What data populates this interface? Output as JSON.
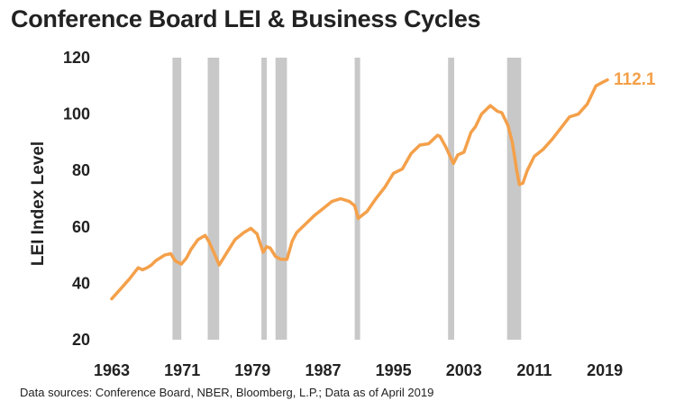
{
  "chart_data": {
    "type": "line",
    "title": "Conference Board LEI & Business Cycles",
    "ylabel": "LEI Index Level",
    "xlabel": "",
    "xlim": [
      1963,
      2019.4
    ],
    "ylim": [
      20,
      120
    ],
    "x_ticks": [
      1963,
      1971,
      1979,
      1987,
      1995,
      2003,
      2011,
      2019
    ],
    "y_ticks": [
      20,
      40,
      60,
      80,
      100,
      120
    ],
    "grid": false,
    "legend": "none",
    "line_color": "#F4A04A",
    "recession_color": "#C8C8C8",
    "end_label": "112.1",
    "recessions": [
      [
        1969.9,
        1970.9
      ],
      [
        1973.9,
        1975.2
      ],
      [
        1980.0,
        1980.6
      ],
      [
        1981.6,
        1982.9
      ],
      [
        1990.6,
        1991.2
      ],
      [
        2001.2,
        2001.9
      ],
      [
        2007.9,
        2009.5
      ]
    ],
    "series": [
      {
        "x": [
          1963.0,
          1964.0,
          1965.0,
          1966.0,
          1966.5,
          1967.0,
          1967.5,
          1968.0,
          1969.0,
          1969.7,
          1970.2,
          1970.9,
          1971.5,
          1972.0,
          1972.8,
          1973.6,
          1974.0,
          1974.8,
          1975.2,
          1975.8,
          1976.5,
          1977.0,
          1978.0,
          1978.8,
          1979.5,
          1980.2,
          1980.6,
          1981.0,
          1981.6,
          1982.2,
          1982.9,
          1983.5,
          1984.0,
          1985.0,
          1986.0,
          1987.0,
          1988.0,
          1989.0,
          1990.0,
          1990.6,
          1991.0,
          1992.0,
          1993.0,
          1994.0,
          1995.0,
          1996.0,
          1997.0,
          1998.0,
          1999.0,
          2000.0,
          2000.3,
          2001.0,
          2001.8,
          2002.3,
          2003.0,
          2003.8,
          2004.3,
          2005.0,
          2006.0,
          2006.8,
          2007.3,
          2008.0,
          2008.5,
          2009.0,
          2009.3,
          2009.7,
          2010.2,
          2011.0,
          2012.0,
          2013.0,
          2014.0,
          2015.0,
          2016.0,
          2017.0,
          2018.0,
          2018.9,
          2019.3
        ],
        "y": [
          34.5,
          38.0,
          41.5,
          45.5,
          44.8,
          45.5,
          46.5,
          48.0,
          50.0,
          50.5,
          48.0,
          46.8,
          49.0,
          52.0,
          55.5,
          57.0,
          55.0,
          49.5,
          46.5,
          49.5,
          53.0,
          55.5,
          58.0,
          59.5,
          57.5,
          51.0,
          53.0,
          52.5,
          49.5,
          48.5,
          48.5,
          55.0,
          58.0,
          61.0,
          64.0,
          66.5,
          69.0,
          70.0,
          69.0,
          67.5,
          63.0,
          65.5,
          70.0,
          74.0,
          79.0,
          80.5,
          86.0,
          89.0,
          89.5,
          92.5,
          92.0,
          88.0,
          82.5,
          85.5,
          86.5,
          93.5,
          95.5,
          100.0,
          103.0,
          101.0,
          100.5,
          96.0,
          90.0,
          80.0,
          75.0,
          75.5,
          80.0,
          85.0,
          87.5,
          91.0,
          95.0,
          99.0,
          100.0,
          103.5,
          110.0,
          111.5,
          112.1
        ]
      }
    ]
  },
  "source_note": "Data sources: Conference Board, NBER, Bloomberg, L.P.;  Data as of April 2019"
}
